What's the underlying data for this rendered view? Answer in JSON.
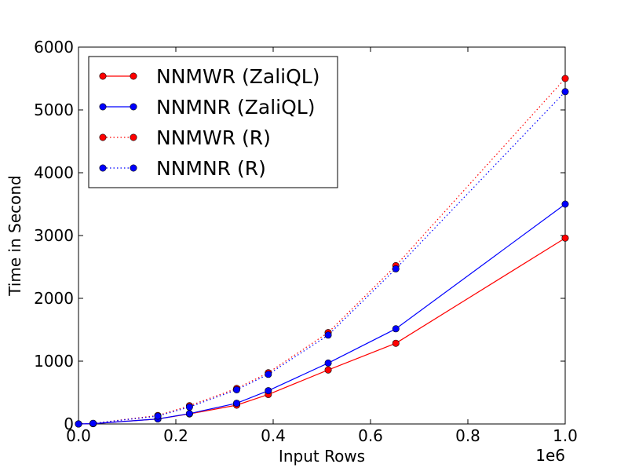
{
  "chart_data": {
    "type": "line",
    "title": "",
    "xlabel": "Input Rows",
    "ylabel": "Time in Second",
    "x_offset_label": "1e6",
    "xlim": [
      0.0,
      1.0
    ],
    "ylim": [
      0,
      6000
    ],
    "x_ticks": [
      0.0,
      0.2,
      0.4,
      0.6,
      0.8,
      1.0
    ],
    "x_tick_labels": [
      "0.0",
      "0.2",
      "0.4",
      "0.6",
      "0.8",
      "1.0"
    ],
    "y_ticks": [
      0,
      1000,
      2000,
      3000,
      4000,
      5000,
      6000
    ],
    "y_tick_labels": [
      "0",
      "1000",
      "2000",
      "3000",
      "4000",
      "5000",
      "6000"
    ],
    "grid": false,
    "legend_position": "top-left",
    "x": [
      0.0,
      0.03,
      0.163,
      0.228,
      0.325,
      0.39,
      0.513,
      0.652,
      1.0
    ],
    "series": [
      {
        "name": "NNMWR (ZaliQL)",
        "color": "#ff0000",
        "linestyle": "solid",
        "values": [
          0,
          5,
          80,
          160,
          300,
          470,
          860,
          1285,
          2960
        ]
      },
      {
        "name": "NNMNR (ZaliQL)",
        "color": "#0000ff",
        "linestyle": "solid",
        "values": [
          0,
          5,
          80,
          165,
          330,
          530,
          970,
          1515,
          3500
        ]
      },
      {
        "name": "NNMWR (R)",
        "color": "#ff0000",
        "linestyle": "dotted",
        "values": [
          0,
          10,
          135,
          290,
          565,
          815,
          1455,
          2520,
          5500
        ]
      },
      {
        "name": "NNMNR (R)",
        "color": "#0000ff",
        "linestyle": "dotted",
        "values": [
          0,
          10,
          125,
          270,
          545,
          790,
          1415,
          2470,
          5290
        ]
      }
    ]
  }
}
